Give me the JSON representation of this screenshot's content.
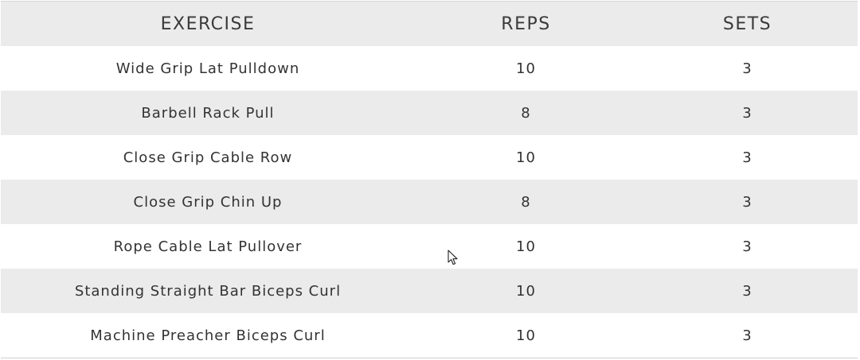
{
  "table": {
    "headers": {
      "exercise": "EXERCISE",
      "reps": "REPS",
      "sets": "SETS"
    },
    "rows": [
      {
        "exercise": "Wide Grip Lat Pulldown",
        "reps": "10",
        "sets": "3"
      },
      {
        "exercise": "Barbell Rack Pull",
        "reps": "8",
        "sets": "3"
      },
      {
        "exercise": "Close Grip Cable Row",
        "reps": "10",
        "sets": "3"
      },
      {
        "exercise": "Close Grip Chin Up",
        "reps": "8",
        "sets": "3"
      },
      {
        "exercise": "Rope Cable Lat Pullover",
        "reps": "10",
        "sets": "3"
      },
      {
        "exercise": "Standing Straight Bar Biceps Curl",
        "reps": "10",
        "sets": "3"
      },
      {
        "exercise": "Machine Preacher Biceps Curl",
        "reps": "10",
        "sets": "3"
      }
    ]
  },
  "colors": {
    "row_stripe": "#ebebeb",
    "text": "#333333"
  },
  "cursor": {
    "icon": "mouse-pointer-icon"
  }
}
